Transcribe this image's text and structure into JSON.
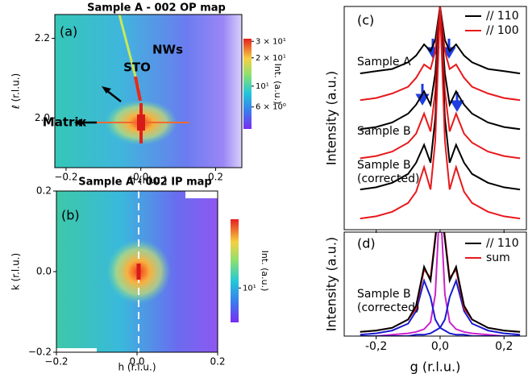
{
  "chart_data": [
    {
      "type": "heatmap",
      "panel_label": "(a)",
      "title": "Sample A - 002 OP map",
      "xlabel": "h (r.l.u.)",
      "ylabel": "ℓ (r.l.u.)",
      "xlim": [
        -0.23,
        0.27
      ],
      "xticks": [
        {
          "value": -0.2,
          "label": "−0.2"
        },
        {
          "value": 0,
          "label": "0.0"
        },
        0.2
      ],
      "ylim": [
        1.875,
        2.26
      ],
      "yticks": [
        {
          "value": 2,
          "label": "2.0"
        },
        2.2
      ],
      "annotations": [
        "NWs",
        "STO",
        "Matrix"
      ],
      "colorbar": {
        "label": "Int. (a.u.)",
        "scale": "log",
        "lim": [
          3.5,
          32
        ],
        "ticks": [
          {
            "value": 30,
            "label": "3 × 10¹"
          },
          {
            "value": 20,
            "label": "2 × 10¹"
          },
          {
            "value": 10,
            "label": "10¹"
          },
          {
            "value": 6,
            "label": "6 × 10⁰"
          }
        ]
      }
    },
    {
      "type": "heatmap",
      "panel_label": "(b)",
      "title": "Sample A - 002 IP map",
      "xlabel": "h (r.l.u.)",
      "ylabel": "k (r.l.u.)",
      "xlim": [
        -0.2,
        0.2
      ],
      "xticks": [
        {
          "value": -0.2,
          "label": "−0.2"
        },
        {
          "value": 0,
          "label": "0.0"
        },
        0.2
      ],
      "ylim": [
        -0.2,
        0.2
      ],
      "yticks": [
        {
          "value": -0.2,
          "label": "−0.2"
        },
        {
          "value": 0,
          "label": "0.0"
        },
        0.2
      ],
      "colorbar": {
        "label": "Int. (a.u.)",
        "scale": "log",
        "lim": [
          5,
          40
        ],
        "ticks": [
          {
            "value": 10,
            "label": "10¹"
          }
        ]
      }
    },
    {
      "type": "line",
      "panel_label": "(c)",
      "ylabel": "Intensity (a.u.)",
      "legend_text_colored": true,
      "xlim": [
        -0.3,
        0.27
      ],
      "ylim": [
        0,
        100
      ],
      "xticks": [
        {
          "value": -0.2,
          "label": "-0,2"
        },
        {
          "value": 0,
          "label": "0,0"
        },
        {
          "value": 0.2,
          "label": "0,2"
        }
      ],
      "x": [
        -0.25,
        -0.2,
        -0.15,
        -0.1,
        -0.075,
        -0.05,
        -0.03,
        -0.015,
        0,
        0.015,
        0.03,
        0.05,
        0.075,
        0.1,
        0.15,
        0.2,
        0.25
      ],
      "legend": [
        {
          "name": "// 110",
          "color": "#000000"
        },
        {
          "name": "// 100",
          "color": "#e8191c"
        }
      ],
      "groups": [
        {
          "label": [
            "Sample A"
          ],
          "series": [
            {
              "color": "#000000",
              "values": [
                70,
                71,
                72,
                75,
                78,
                83,
                80,
                85,
                100,
                85,
                80,
                83,
                78,
                75,
                72,
                71,
                70
              ]
            },
            {
              "color": "#e8191c",
              "values": [
                58,
                59,
                61,
                64,
                68,
                74,
                72,
                80,
                100,
                80,
                72,
                74,
                68,
                64,
                61,
                59,
                58
              ]
            }
          ]
        },
        {
          "label": [
            "Sample B"
          ],
          "series": [
            {
              "color": "#000000",
              "values": [
                45,
                46,
                48,
                52,
                56,
                62,
                56,
                70,
                100,
                70,
                56,
                62,
                56,
                52,
                48,
                46,
                45
              ]
            },
            {
              "color": "#e8191c",
              "values": [
                32,
                33,
                35,
                39,
                43,
                52,
                44,
                62,
                100,
                62,
                44,
                52,
                43,
                39,
                35,
                33,
                32
              ]
            }
          ]
        },
        {
          "label": [
            "Sample B",
            "(corrected)"
          ],
          "series": [
            {
              "color": "#000000",
              "values": [
                18,
                19,
                21,
                25,
                30,
                38,
                30,
                50,
                100,
                50,
                30,
                38,
                30,
                25,
                21,
                19,
                18
              ]
            },
            {
              "color": "#e8191c",
              "values": [
                5,
                6,
                8,
                12,
                17,
                28,
                18,
                40,
                100,
                40,
                18,
                28,
                17,
                12,
                8,
                6,
                5
              ]
            }
          ]
        }
      ]
    },
    {
      "type": "line",
      "panel_label": "(d)",
      "ylabel": "Intensity (a.u.)",
      "xlabel": "g (r.l.u.)",
      "legend_text_colored": false,
      "xlim": [
        -0.3,
        0.27
      ],
      "ylim": [
        0,
        75
      ],
      "xticks": [
        {
          "value": -0.2,
          "label": "-0,2"
        },
        {
          "value": 0,
          "label": "0,0"
        },
        {
          "value": 0.2,
          "label": "0,2"
        }
      ],
      "x": [
        -0.25,
        -0.2,
        -0.15,
        -0.1,
        -0.075,
        -0.05,
        -0.03,
        -0.015,
        0,
        0.015,
        0.03,
        0.05,
        0.075,
        0.1,
        0.15,
        0.2,
        0.25
      ],
      "legend": [
        {
          "name": "// 110",
          "color": "#000000"
        },
        {
          "name": "sum",
          "color": "#e8191c"
        }
      ],
      "groups": [
        {
          "label": [
            "Sample B",
            "(corrected)"
          ],
          "series": [
            {
              "color": "#cc22cc",
              "values": [
                0,
                0,
                1,
                2,
                3,
                5,
                10,
                30,
                100,
                30,
                10,
                5,
                3,
                2,
                1,
                0,
                0
              ]
            },
            {
              "color": "#1a1ad0",
              "values": [
                1,
                2,
                4,
                9,
                18,
                40,
                28,
                12,
                6,
                4,
                2,
                1,
                1,
                0,
                0,
                0,
                0
              ]
            },
            {
              "color": "#1a1ad0",
              "values": [
                0,
                0,
                0,
                0,
                1,
                1,
                2,
                4,
                6,
                12,
                28,
                40,
                18,
                9,
                4,
                2,
                1
              ]
            },
            {
              "color": "#e8191c",
              "values": [
                3,
                4,
                6,
                12,
                20,
                48,
                42,
                72,
                100,
                72,
                42,
                48,
                20,
                12,
                6,
                4,
                3
              ]
            },
            {
              "color": "#000000",
              "values": [
                3,
                4,
                6,
                12,
                22,
                50,
                40,
                70,
                100,
                70,
                40,
                50,
                22,
                12,
                6,
                4,
                3
              ]
            }
          ]
        }
      ]
    }
  ]
}
